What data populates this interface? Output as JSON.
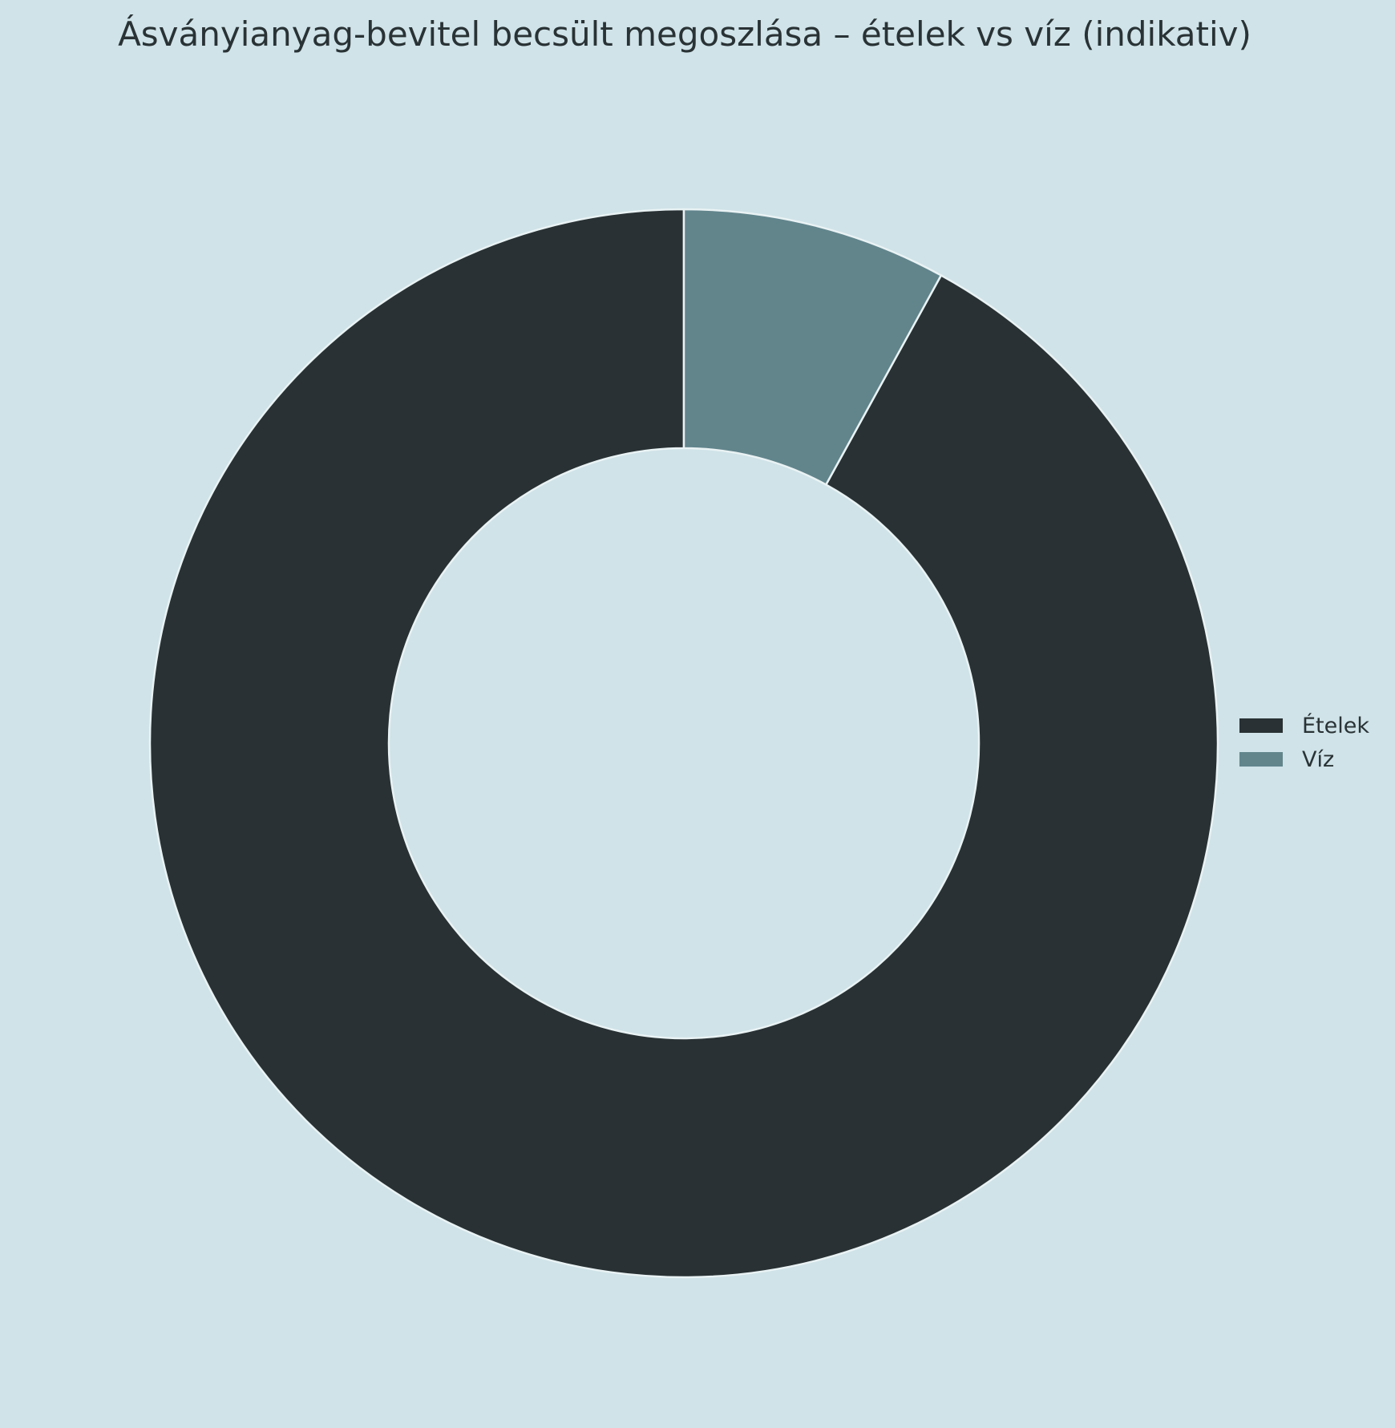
{
  "chart_data": {
    "type": "pie",
    "variant": "donut",
    "title": "Ásványianyag-bevitel becsült megoszlása – ételek vs víz (indikativ)",
    "categories": [
      "Ételek",
      "Víz"
    ],
    "values": [
      92,
      8
    ],
    "colors": [
      "#293134",
      "#62858c"
    ],
    "background": "#cfe3e8",
    "slice_edge_color": "#e9f2f4",
    "start_angle_degrees": 90,
    "direction": "clockwise",
    "legend": {
      "placement": "right",
      "entries": [
        "Ételek",
        "Víz"
      ]
    }
  }
}
